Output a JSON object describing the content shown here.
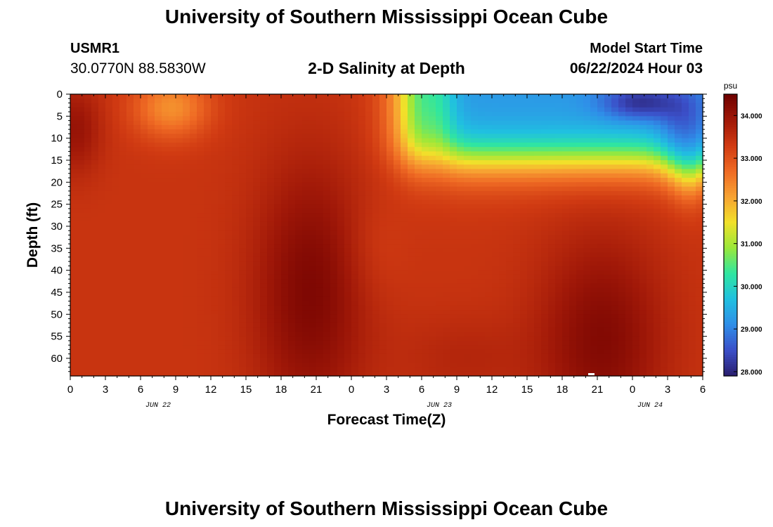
{
  "header": {
    "title": "University of Southern Mississippi Ocean Cube",
    "station": "USMR1",
    "coords": "30.0770N  88.5830W",
    "plot_title": "2-D Salinity at Depth",
    "model_start_label": "Model Start Time",
    "model_start_value": "06/22/2024 Hour 03"
  },
  "footer": {
    "title": "University of Southern Mississippi Ocean Cube"
  },
  "chart_data": {
    "type": "heatmap",
    "title": "2-D Salinity at Depth",
    "xlabel": "Forecast Time(Z)",
    "ylabel": "Depth (ft)",
    "x_ticks": [
      "0",
      "3",
      "6",
      "9",
      "12",
      "15",
      "18",
      "21",
      "0",
      "3",
      "6",
      "9",
      "12",
      "15",
      "18",
      "21",
      "0",
      "3",
      "6"
    ],
    "date_labels": [
      {
        "label": "JUN 22",
        "tick_index": 2.5
      },
      {
        "label": "JUN 23",
        "tick_index": 10.5
      },
      {
        "label": "JUN 24",
        "tick_index": 16.5
      }
    ],
    "y_ticks": [
      "0",
      "5",
      "10",
      "15",
      "20",
      "25",
      "30",
      "35",
      "40",
      "45",
      "50",
      "55",
      "60"
    ],
    "ylim": [
      0,
      64
    ],
    "y_inverted": true,
    "colorbar": {
      "unit": "psu",
      "min": 27.9,
      "max": 34.5,
      "ticks": [
        "28.000",
        "29.000",
        "30.000",
        "31.000",
        "32.000",
        "33.000",
        "34.000"
      ],
      "colors": [
        "#2a1e6e",
        "#3b4fc8",
        "#2f8ee8",
        "#20c0e0",
        "#30e6a0",
        "#9ae83a",
        "#f2e02a",
        "#f7a232",
        "#ef6a24",
        "#d03a12",
        "#a01808",
        "#6e0000"
      ]
    }
  }
}
